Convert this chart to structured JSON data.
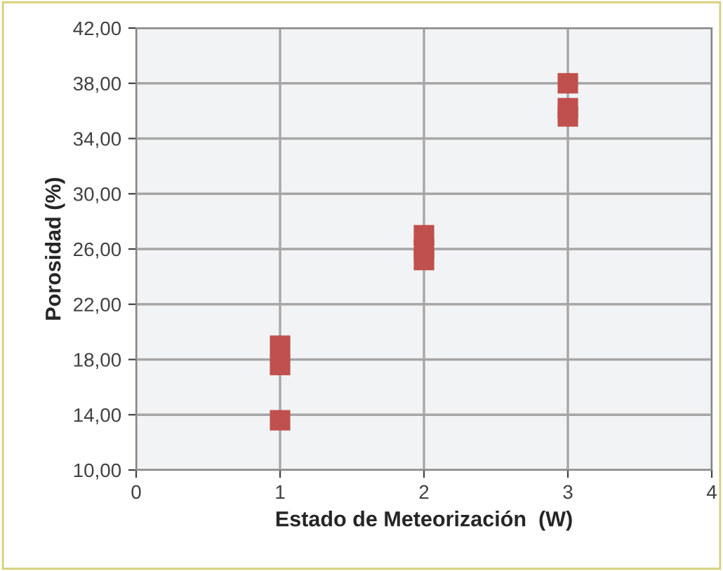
{
  "chart_data": {
    "type": "scatter",
    "xlabel": "Estado de Meteorización  (W)",
    "ylabel": "Porosidad (%)",
    "x": [
      1,
      1,
      1,
      2,
      2,
      2,
      3,
      3,
      3
    ],
    "values": [
      19.0,
      17.6,
      13.6,
      27.0,
      26.0,
      25.2,
      38.0,
      36.2,
      35.6
    ],
    "color": "#c0504d",
    "marker": "square",
    "grid": true,
    "xlim": [
      0,
      4
    ],
    "xticks": [
      0,
      1,
      2,
      3,
      4
    ],
    "ylim": [
      10,
      42
    ],
    "yticks": [
      {
        "value": 10,
        "label": "10,00"
      },
      {
        "value": 14,
        "label": "14,00"
      },
      {
        "value": 18,
        "label": "18,00"
      },
      {
        "value": 22,
        "label": "22,00"
      },
      {
        "value": 26,
        "label": "26,00"
      },
      {
        "value": 30,
        "label": "30,00"
      },
      {
        "value": 34,
        "label": "34,00"
      },
      {
        "value": 38,
        "label": "38,00"
      },
      {
        "value": 42,
        "label": "42,00"
      }
    ]
  }
}
